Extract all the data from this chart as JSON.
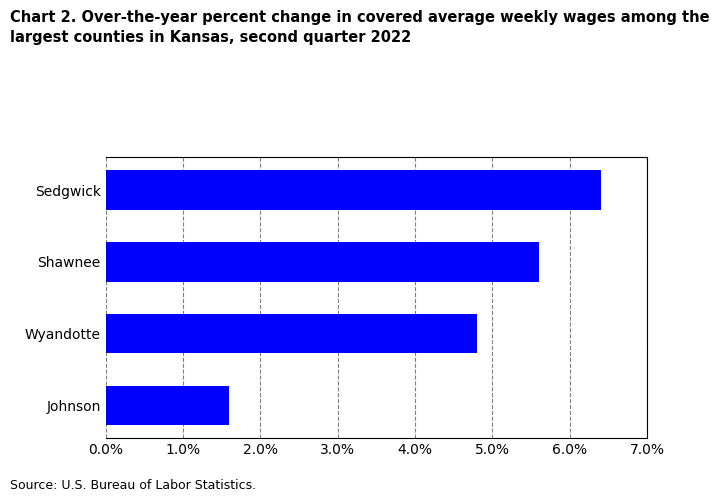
{
  "title_line1": "Chart 2. Over-the-year percent change in covered average weekly wages among the",
  "title_line2": "largest counties in Kansas, second quarter 2022",
  "categories": [
    "Johnson",
    "Wyandotte",
    "Shawnee",
    "Sedgwick"
  ],
  "values": [
    1.6,
    4.8,
    5.6,
    6.4
  ],
  "bar_color": "#0000FF",
  "xlim": [
    0.0,
    0.07
  ],
  "xticks": [
    0.0,
    0.01,
    0.02,
    0.03,
    0.04,
    0.05,
    0.06,
    0.07
  ],
  "xtick_labels": [
    "0.0%",
    "1.0%",
    "2.0%",
    "3.0%",
    "4.0%",
    "5.0%",
    "6.0%",
    "7.0%"
  ],
  "source_text": "Source: U.S. Bureau of Labor Statistics.",
  "background_color": "#ffffff",
  "title_fontsize": 10.5,
  "tick_fontsize": 10,
  "source_fontsize": 9,
  "bar_height": 0.55
}
